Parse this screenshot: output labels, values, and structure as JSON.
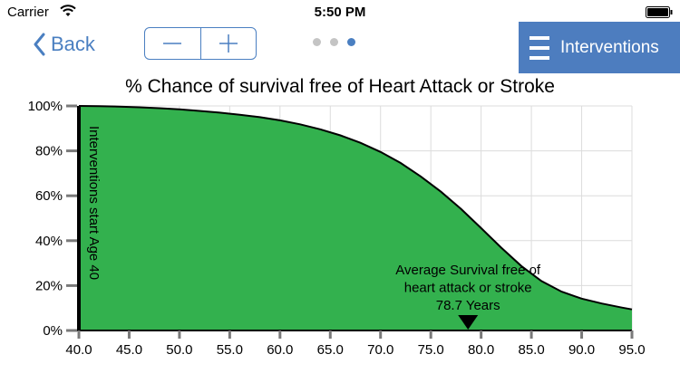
{
  "status_bar": {
    "carrier": "Carrier",
    "time": "5:50 PM"
  },
  "nav": {
    "back_label": "Back",
    "stepper": {
      "minus_icon": "minus-icon",
      "plus_icon": "plus-icon"
    },
    "page_dots": {
      "count": 3,
      "active_index": 2
    },
    "interventions_label": "Interventions"
  },
  "colors": {
    "accent": "#4a7fc1",
    "button_bg": "#4d7dbf",
    "curve_fill": "#33b14e"
  },
  "chart_data": {
    "type": "area",
    "title": "% Chance of survival free of Heart Attack or Stroke",
    "xlabel": "",
    "ylabel": "",
    "xlim": [
      40,
      95
    ],
    "ylim": [
      0,
      100
    ],
    "x_ticks": [
      "40.0",
      "45.0",
      "50.0",
      "55.0",
      "60.0",
      "65.0",
      "70.0",
      "75.0",
      "80.0",
      "85.0",
      "90.0",
      "95.0"
    ],
    "y_ticks": [
      "0%",
      "20%",
      "40%",
      "60%",
      "80%",
      "100%"
    ],
    "grid": true,
    "series": [
      {
        "x": [
          40,
          42,
          44,
          46,
          48,
          50,
          52,
          54,
          56,
          58,
          60,
          62,
          64,
          66,
          68,
          70,
          72,
          74,
          76,
          78,
          80,
          82,
          84,
          86,
          88,
          90,
          92,
          94,
          95
        ],
        "y": [
          100,
          99.9,
          99.7,
          99.4,
          99.0,
          98.5,
          97.8,
          97.0,
          96.1,
          95.0,
          93.6,
          91.8,
          89.6,
          86.9,
          83.6,
          79.5,
          74.6,
          68.6,
          61.8,
          54.1,
          45.6,
          36.9,
          28.7,
          22.0,
          17.3,
          14.2,
          12.0,
          10.2,
          9.4
        ]
      }
    ],
    "annotations": {
      "start_line": {
        "x": 40,
        "label": "Interventions start Age 40"
      },
      "average": {
        "x": 78.7,
        "lines": [
          "Average Survival free of",
          "heart attack or stroke",
          "78.7 Years"
        ]
      }
    }
  }
}
